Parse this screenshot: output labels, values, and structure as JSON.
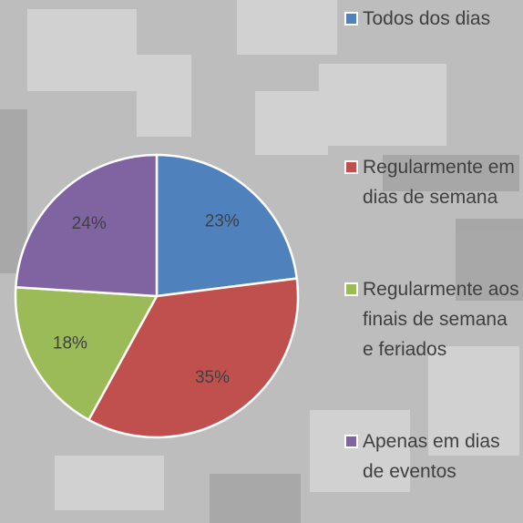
{
  "chart_data": {
    "type": "pie",
    "categories": [
      "Todos dos dias",
      "Regularmente em dias de semana",
      "Regularmente aos finais de semana e feriados",
      "Apenas em dias de eventos"
    ],
    "values": [
      23,
      35,
      18,
      24
    ],
    "value_labels": [
      "23%",
      "35%",
      "18%",
      "24%"
    ],
    "colors": [
      "#4f81bd",
      "#c0504d",
      "#9bbb59",
      "#8064a2"
    ],
    "legend": "right"
  }
}
